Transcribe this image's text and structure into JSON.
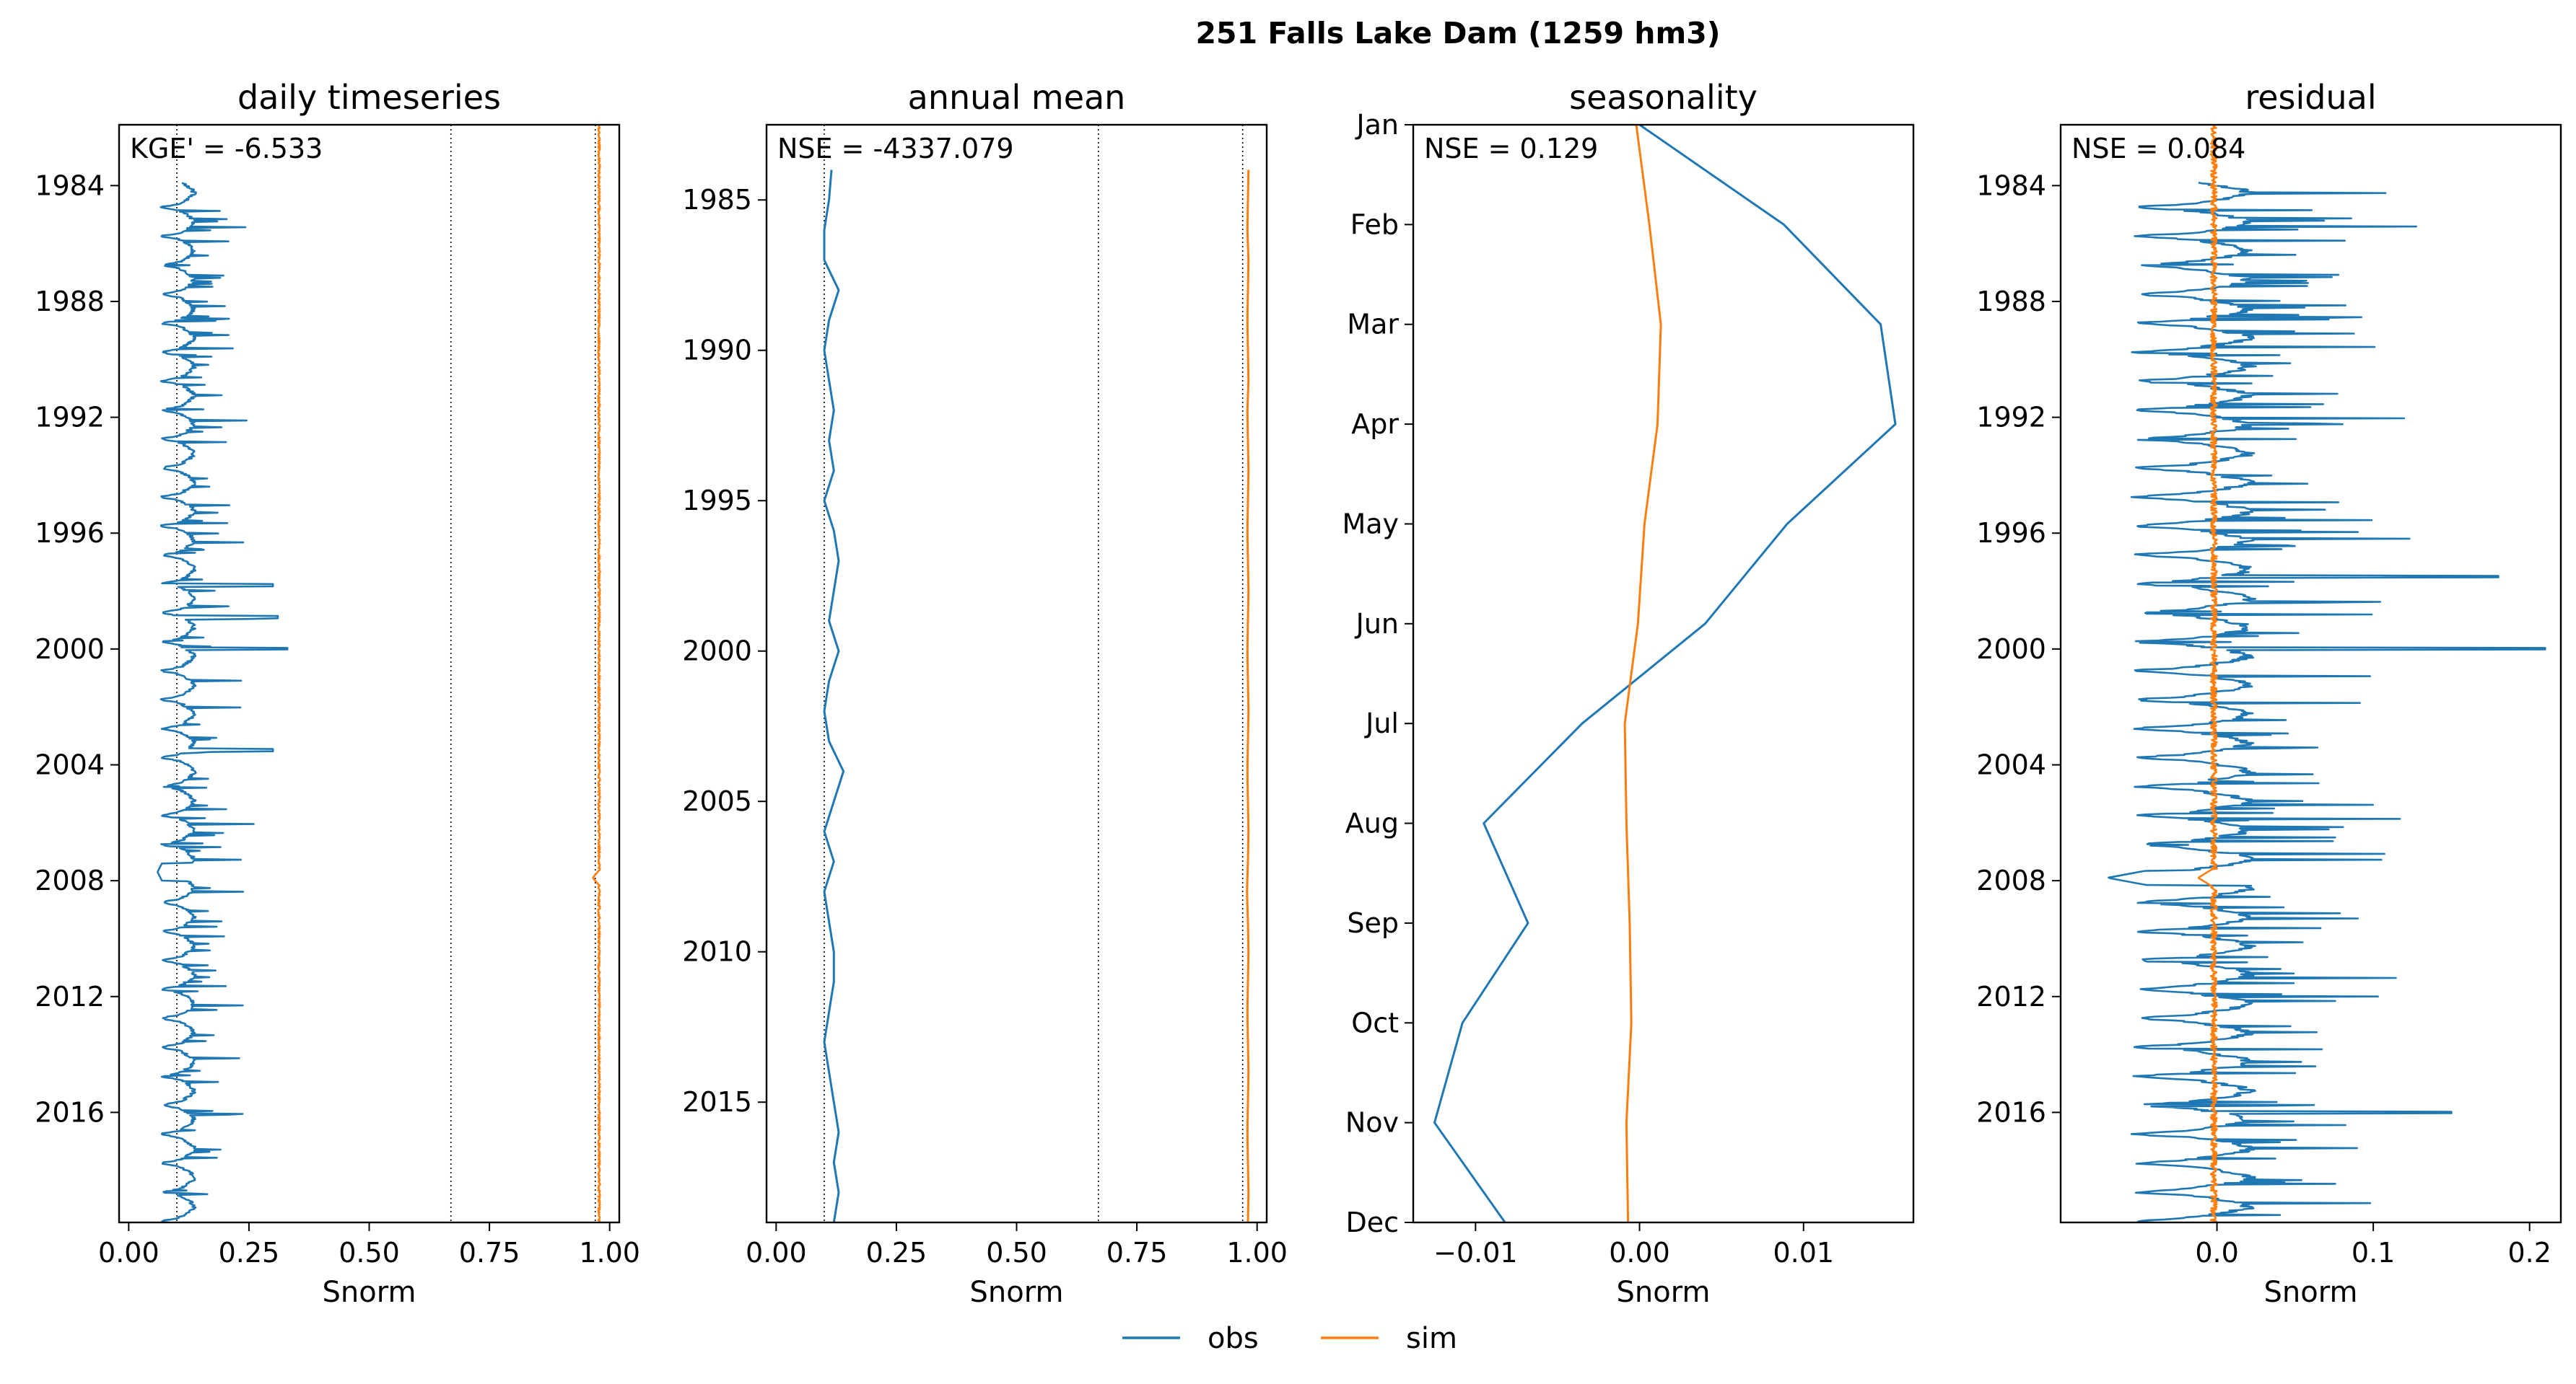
{
  "figure": {
    "suptitle": "251  Falls Lake Dam (1259 hm3)",
    "legend": [
      {
        "label": "obs",
        "color": "#1f77b4"
      },
      {
        "label": "sim",
        "color": "#ff7f0e"
      }
    ]
  },
  "colors": {
    "obs": "#1f77b4",
    "sim": "#ff7f0e",
    "refline": "#000000"
  },
  "chart_data": [
    {
      "id": "daily",
      "type": "line",
      "title": "daily timeseries",
      "xlabel": "Snorm",
      "metric": "KGE' = -6.533",
      "xlim": [
        -0.02,
        1.02
      ],
      "ylim": [
        1981.9,
        2019.8
      ],
      "invert_y": true,
      "xticks": [
        0,
        0.25,
        0.5,
        0.75,
        1.0
      ],
      "xtick_labels": [
        "0.00",
        "0.25",
        "0.50",
        "0.75",
        "1.00"
      ],
      "yticks": [
        1984,
        1988,
        1992,
        1996,
        2000,
        2004,
        2008,
        2012,
        2016
      ],
      "ytick_labels": [
        "1984",
        "1988",
        "1992",
        "1996",
        "2000",
        "2004",
        "2008",
        "2012",
        "2016"
      ],
      "ref_lines": [
        0.1,
        0.67,
        0.97
      ],
      "series": [
        {
          "name": "obs",
          "key": "obs",
          "kind": "daily_obs",
          "y_range": [
            1983.9,
            2019.8
          ]
        },
        {
          "name": "sim",
          "key": "sim",
          "kind": "daily_sim",
          "y_range": [
            1981.9,
            2019.8
          ]
        }
      ]
    },
    {
      "id": "annual",
      "type": "line",
      "title": "annual mean",
      "xlabel": "Snorm",
      "metric": "NSE = -4337.079",
      "xlim": [
        -0.02,
        1.02
      ],
      "ylim": [
        1982.5,
        2019.0
      ],
      "invert_y": true,
      "xticks": [
        0,
        0.25,
        0.5,
        0.75,
        1.0
      ],
      "xtick_labels": [
        "0.00",
        "0.25",
        "0.50",
        "0.75",
        "1.00"
      ],
      "yticks": [
        1985,
        1990,
        1995,
        2000,
        2005,
        2010,
        2015
      ],
      "ytick_labels": [
        "1985",
        "1990",
        "1995",
        "2000",
        "2005",
        "2010",
        "2015"
      ],
      "ref_lines": [
        0.1,
        0.67,
        0.97
      ],
      "series": [
        {
          "name": "obs",
          "key": "obs",
          "x": [
            0.115,
            0.11,
            0.1,
            0.1,
            0.13,
            0.11,
            0.1,
            0.11,
            0.12,
            0.11,
            0.12,
            0.1,
            0.12,
            0.13,
            0.12,
            0.11,
            0.13,
            0.11,
            0.1,
            0.11,
            0.14,
            0.12,
            0.1,
            0.12,
            0.1,
            0.11,
            0.12,
            0.12,
            0.11,
            0.1,
            0.11,
            0.12,
            0.13,
            0.12,
            0.13,
            0.12,
            0.14,
            0.12
          ],
          "y": [
            1984,
            1985,
            1986,
            1987,
            1988,
            1989,
            1990,
            1991,
            1992,
            1993,
            1994,
            1995,
            1996,
            1997,
            1998,
            1999,
            2000,
            2001,
            2002,
            2003,
            2004,
            2005,
            2006,
            2007,
            2008,
            2009,
            2010,
            2011,
            2012,
            2013,
            2014,
            2015,
            2016,
            2017,
            2018,
            2019,
            2019.5,
            2019.9
          ]
        },
        {
          "name": "sim",
          "key": "sim",
          "x": [
            0.982,
            0.981,
            0.98,
            0.982,
            0.981,
            0.98,
            0.981,
            0.982,
            0.98,
            0.981,
            0.982,
            0.981,
            0.98,
            0.981,
            0.982,
            0.981,
            0.98,
            0.981,
            0.982,
            0.981,
            0.98,
            0.981,
            0.982,
            0.981,
            0.979,
            0.981,
            0.982,
            0.981,
            0.98,
            0.981,
            0.982,
            0.981,
            0.98,
            0.981,
            0.982,
            0.981
          ],
          "y": [
            1984,
            1985,
            1986,
            1987,
            1988,
            1989,
            1990,
            1991,
            1992,
            1993,
            1994,
            1995,
            1996,
            1997,
            1998,
            1999,
            2000,
            2001,
            2002,
            2003,
            2004,
            2005,
            2006,
            2007,
            2008,
            2009,
            2010,
            2011,
            2012,
            2013,
            2014,
            2015,
            2016,
            2017,
            2018,
            2019
          ]
        }
      ]
    },
    {
      "id": "season",
      "type": "line",
      "title": "seasonality",
      "xlabel": "Snorm",
      "metric": "NSE = 0.129",
      "xlim": [
        -0.0138,
        0.0167
      ],
      "ylim": [
        0,
        11
      ],
      "invert_y": true,
      "xticks": [
        -0.01,
        0.0,
        0.01
      ],
      "xtick_labels": [
        "−0.01",
        "0.00",
        "0.01"
      ],
      "yticks": [
        0,
        1,
        2,
        3,
        4,
        5,
        6,
        7,
        8,
        9,
        10,
        11
      ],
      "ytick_labels": [
        "Jan",
        "Feb",
        "Mar",
        "Apr",
        "May",
        "Jun",
        "Jul",
        "Aug",
        "Sep",
        "Oct",
        "Nov",
        "Dec"
      ],
      "ref_lines": [],
      "series": [
        {
          "name": "obs",
          "key": "obs",
          "x": [
            0.0,
            0.0088,
            0.0147,
            0.0156,
            0.009,
            0.004,
            -0.0035,
            -0.0095,
            -0.0068,
            -0.0108,
            -0.0125,
            -0.0082
          ],
          "y": [
            0,
            1,
            2,
            3,
            4,
            5,
            6,
            7,
            8,
            9,
            10,
            11
          ]
        },
        {
          "name": "sim",
          "key": "sim",
          "x": [
            -0.0002,
            0.0006,
            0.0013,
            0.0011,
            0.0003,
            -0.0001,
            -0.0009,
            -0.0008,
            -0.0006,
            -0.0005,
            -0.0008,
            -0.0007
          ],
          "y": [
            0,
            1,
            2,
            3,
            4,
            5,
            6,
            7,
            8,
            9,
            10,
            11
          ]
        }
      ]
    },
    {
      "id": "residual",
      "type": "line",
      "title": "residual",
      "xlabel": "Snorm",
      "metric": "NSE = 0.084",
      "xlim": [
        -0.1,
        0.22
      ],
      "ylim": [
        1981.9,
        2019.8
      ],
      "invert_y": true,
      "xticks": [
        0.0,
        0.1,
        0.2
      ],
      "xtick_labels": [
        "0.0",
        "0.1",
        "0.2"
      ],
      "yticks": [
        1984,
        1988,
        1992,
        1996,
        2000,
        2004,
        2008,
        2012,
        2016
      ],
      "ytick_labels": [
        "1984",
        "1988",
        "1992",
        "1996",
        "2000",
        "2004",
        "2008",
        "2012",
        "2016"
      ],
      "ref_lines": [],
      "series": [
        {
          "name": "obs",
          "key": "obs",
          "kind": "resid_obs",
          "y_range": [
            1983.9,
            2019.8
          ]
        },
        {
          "name": "sim",
          "key": "sim",
          "kind": "resid_sim",
          "y_range": [
            1981.9,
            2019.8
          ]
        }
      ]
    }
  ]
}
